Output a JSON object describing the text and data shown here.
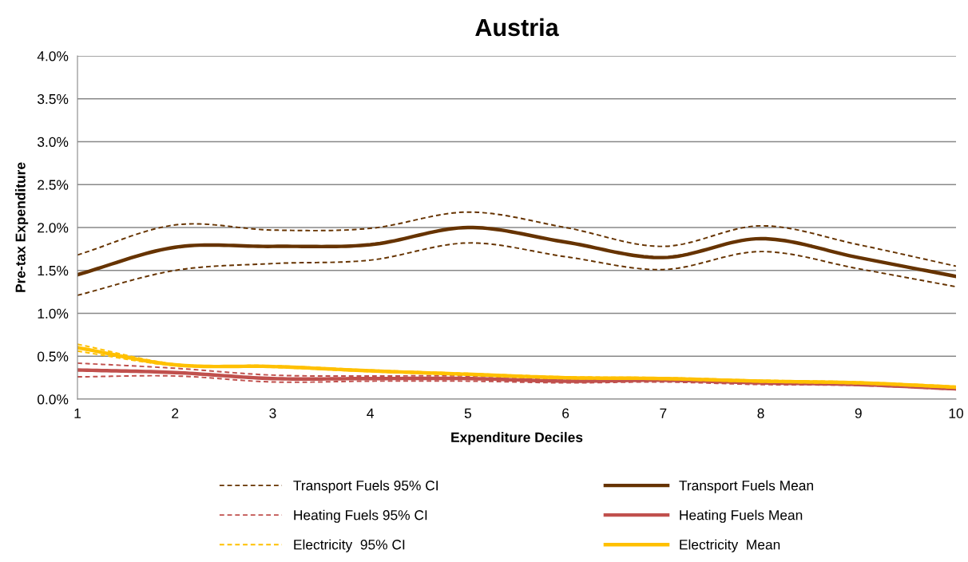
{
  "chart_data": {
    "type": "line",
    "title": "Austria",
    "xlabel": "Expenditure Deciles",
    "ylabel": "Pre-tax Expenditure",
    "x": [
      1,
      2,
      3,
      4,
      5,
      6,
      7,
      8,
      9,
      10
    ],
    "xlim": [
      1,
      10
    ],
    "xticks": [
      1,
      2,
      3,
      4,
      5,
      6,
      7,
      8,
      9,
      10
    ],
    "ylim": [
      0,
      4.0
    ],
    "yticks": [
      {
        "value": 0,
        "label": "0.0%"
      },
      {
        "value": 0.5,
        "label": "0.5%"
      },
      {
        "value": 1.0,
        "label": "1.0%"
      },
      {
        "value": 1.5,
        "label": "1.5%"
      },
      {
        "value": 2.0,
        "label": "2.0%"
      },
      {
        "value": 2.5,
        "label": "2.5%"
      },
      {
        "value": 3.0,
        "label": "3.0%"
      },
      {
        "value": 3.5,
        "label": "3.5%"
      },
      {
        "value": 4.0,
        "label": "4.0%"
      }
    ],
    "grid": "y",
    "legend": "bottom",
    "series": [
      {
        "name": "Transport Fuels 95% CI",
        "color": "#663300",
        "line_style": "dashed",
        "values": [
          1.68,
          2.03,
          1.97,
          1.99,
          2.18,
          2.0,
          1.78,
          2.02,
          1.8,
          1.55
        ]
      },
      {
        "color": "#663300",
        "line_style": "dashed",
        "values": [
          1.21,
          1.5,
          1.58,
          1.62,
          1.82,
          1.66,
          1.51,
          1.72,
          1.52,
          1.31
        ]
      },
      {
        "name": "Transport Fuels Mean",
        "color": "#663300",
        "line_style": "solid",
        "values": [
          1.45,
          1.77,
          1.78,
          1.8,
          2.0,
          1.83,
          1.65,
          1.87,
          1.65,
          1.43
        ]
      },
      {
        "name": "Heating Fuels 95% CI",
        "color": "#c0504d",
        "line_style": "dashed",
        "values": [
          0.42,
          0.36,
          0.28,
          0.27,
          0.27,
          0.23,
          0.23,
          0.2,
          0.18,
          0.13
        ]
      },
      {
        "color": "#c0504d",
        "line_style": "dashed",
        "values": [
          0.26,
          0.27,
          0.2,
          0.21,
          0.21,
          0.19,
          0.2,
          0.17,
          0.16,
          0.11
        ]
      },
      {
        "name": "Heating Fuels Mean",
        "color": "#c0504d",
        "line_style": "solid",
        "values": [
          0.34,
          0.31,
          0.24,
          0.24,
          0.24,
          0.21,
          0.22,
          0.19,
          0.17,
          0.12
        ]
      },
      {
        "name": "Electricity  95% CI",
        "color": "#ffc000",
        "line_style": "dashed",
        "values": [
          0.64,
          0.41,
          0.39,
          0.34,
          0.3,
          0.26,
          0.25,
          0.22,
          0.2,
          0.15
        ]
      },
      {
        "color": "#ffc000",
        "line_style": "dashed",
        "values": [
          0.56,
          0.39,
          0.37,
          0.32,
          0.28,
          0.24,
          0.23,
          0.2,
          0.18,
          0.13
        ]
      },
      {
        "name": "Electricity  Mean",
        "color": "#ffc000",
        "line_style": "solid",
        "values": [
          0.6,
          0.4,
          0.38,
          0.33,
          0.29,
          0.25,
          0.24,
          0.21,
          0.19,
          0.14
        ]
      }
    ]
  }
}
